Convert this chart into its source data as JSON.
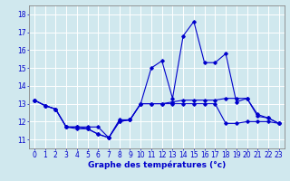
{
  "title": "",
  "xlabel": "Graphe des températures (°c)",
  "ylabel": "",
  "background_color": "#d0e8ee",
  "grid_color": "#b8d8e0",
  "line_color": "#0000cc",
  "x_ticks": [
    0,
    1,
    2,
    3,
    4,
    5,
    6,
    7,
    8,
    9,
    10,
    11,
    12,
    13,
    14,
    15,
    16,
    17,
    18,
    19,
    20,
    21,
    22,
    23
  ],
  "y_ticks": [
    11,
    12,
    13,
    14,
    15,
    16,
    17,
    18
  ],
  "ylim": [
    10.5,
    18.5
  ],
  "xlim": [
    -0.5,
    23.5
  ],
  "curve1_x": [
    0,
    1,
    2,
    3,
    4,
    5,
    6,
    7,
    8,
    9,
    10,
    11,
    12,
    13,
    14,
    15,
    16,
    17,
    18,
    19,
    20,
    21,
    22,
    23
  ],
  "curve1_y": [
    13.2,
    12.9,
    12.7,
    11.7,
    11.7,
    11.7,
    11.7,
    11.1,
    12.0,
    12.1,
    13.0,
    13.0,
    13.0,
    13.0,
    13.0,
    13.0,
    13.0,
    13.0,
    11.9,
    11.9,
    12.0,
    12.0,
    12.0,
    11.9
  ],
  "curve2_x": [
    0,
    1,
    2,
    3,
    4,
    5,
    6,
    7,
    8,
    9,
    10,
    11,
    12,
    13,
    14,
    15,
    16,
    17,
    18,
    19,
    20,
    21,
    22,
    23
  ],
  "curve2_y": [
    13.2,
    12.9,
    12.7,
    11.7,
    11.7,
    11.6,
    11.3,
    11.1,
    12.1,
    12.1,
    13.0,
    15.0,
    15.4,
    13.3,
    16.8,
    17.6,
    15.3,
    15.3,
    15.8,
    13.1,
    13.3,
    12.4,
    12.2,
    11.9
  ],
  "curve3_x": [
    0,
    1,
    2,
    3,
    4,
    5,
    6,
    7,
    8,
    9,
    10,
    11,
    12,
    13,
    14,
    15,
    16,
    17,
    18,
    19,
    20,
    21,
    22,
    23
  ],
  "curve3_y": [
    13.2,
    12.9,
    12.7,
    11.7,
    11.6,
    11.6,
    11.3,
    11.1,
    12.0,
    12.1,
    13.0,
    13.0,
    13.0,
    13.1,
    13.2,
    13.2,
    13.2,
    13.2,
    13.3,
    13.3,
    13.3,
    12.3,
    12.2,
    11.9
  ],
  "marker": "D",
  "markersize": 1.8,
  "linewidth": 0.8,
  "fontsize_xlabel": 6.5,
  "fontsize_ticks": 5.5,
  "tick_color": "#0000cc",
  "axis_color": "#555555",
  "xlabel_color": "#0000cc"
}
